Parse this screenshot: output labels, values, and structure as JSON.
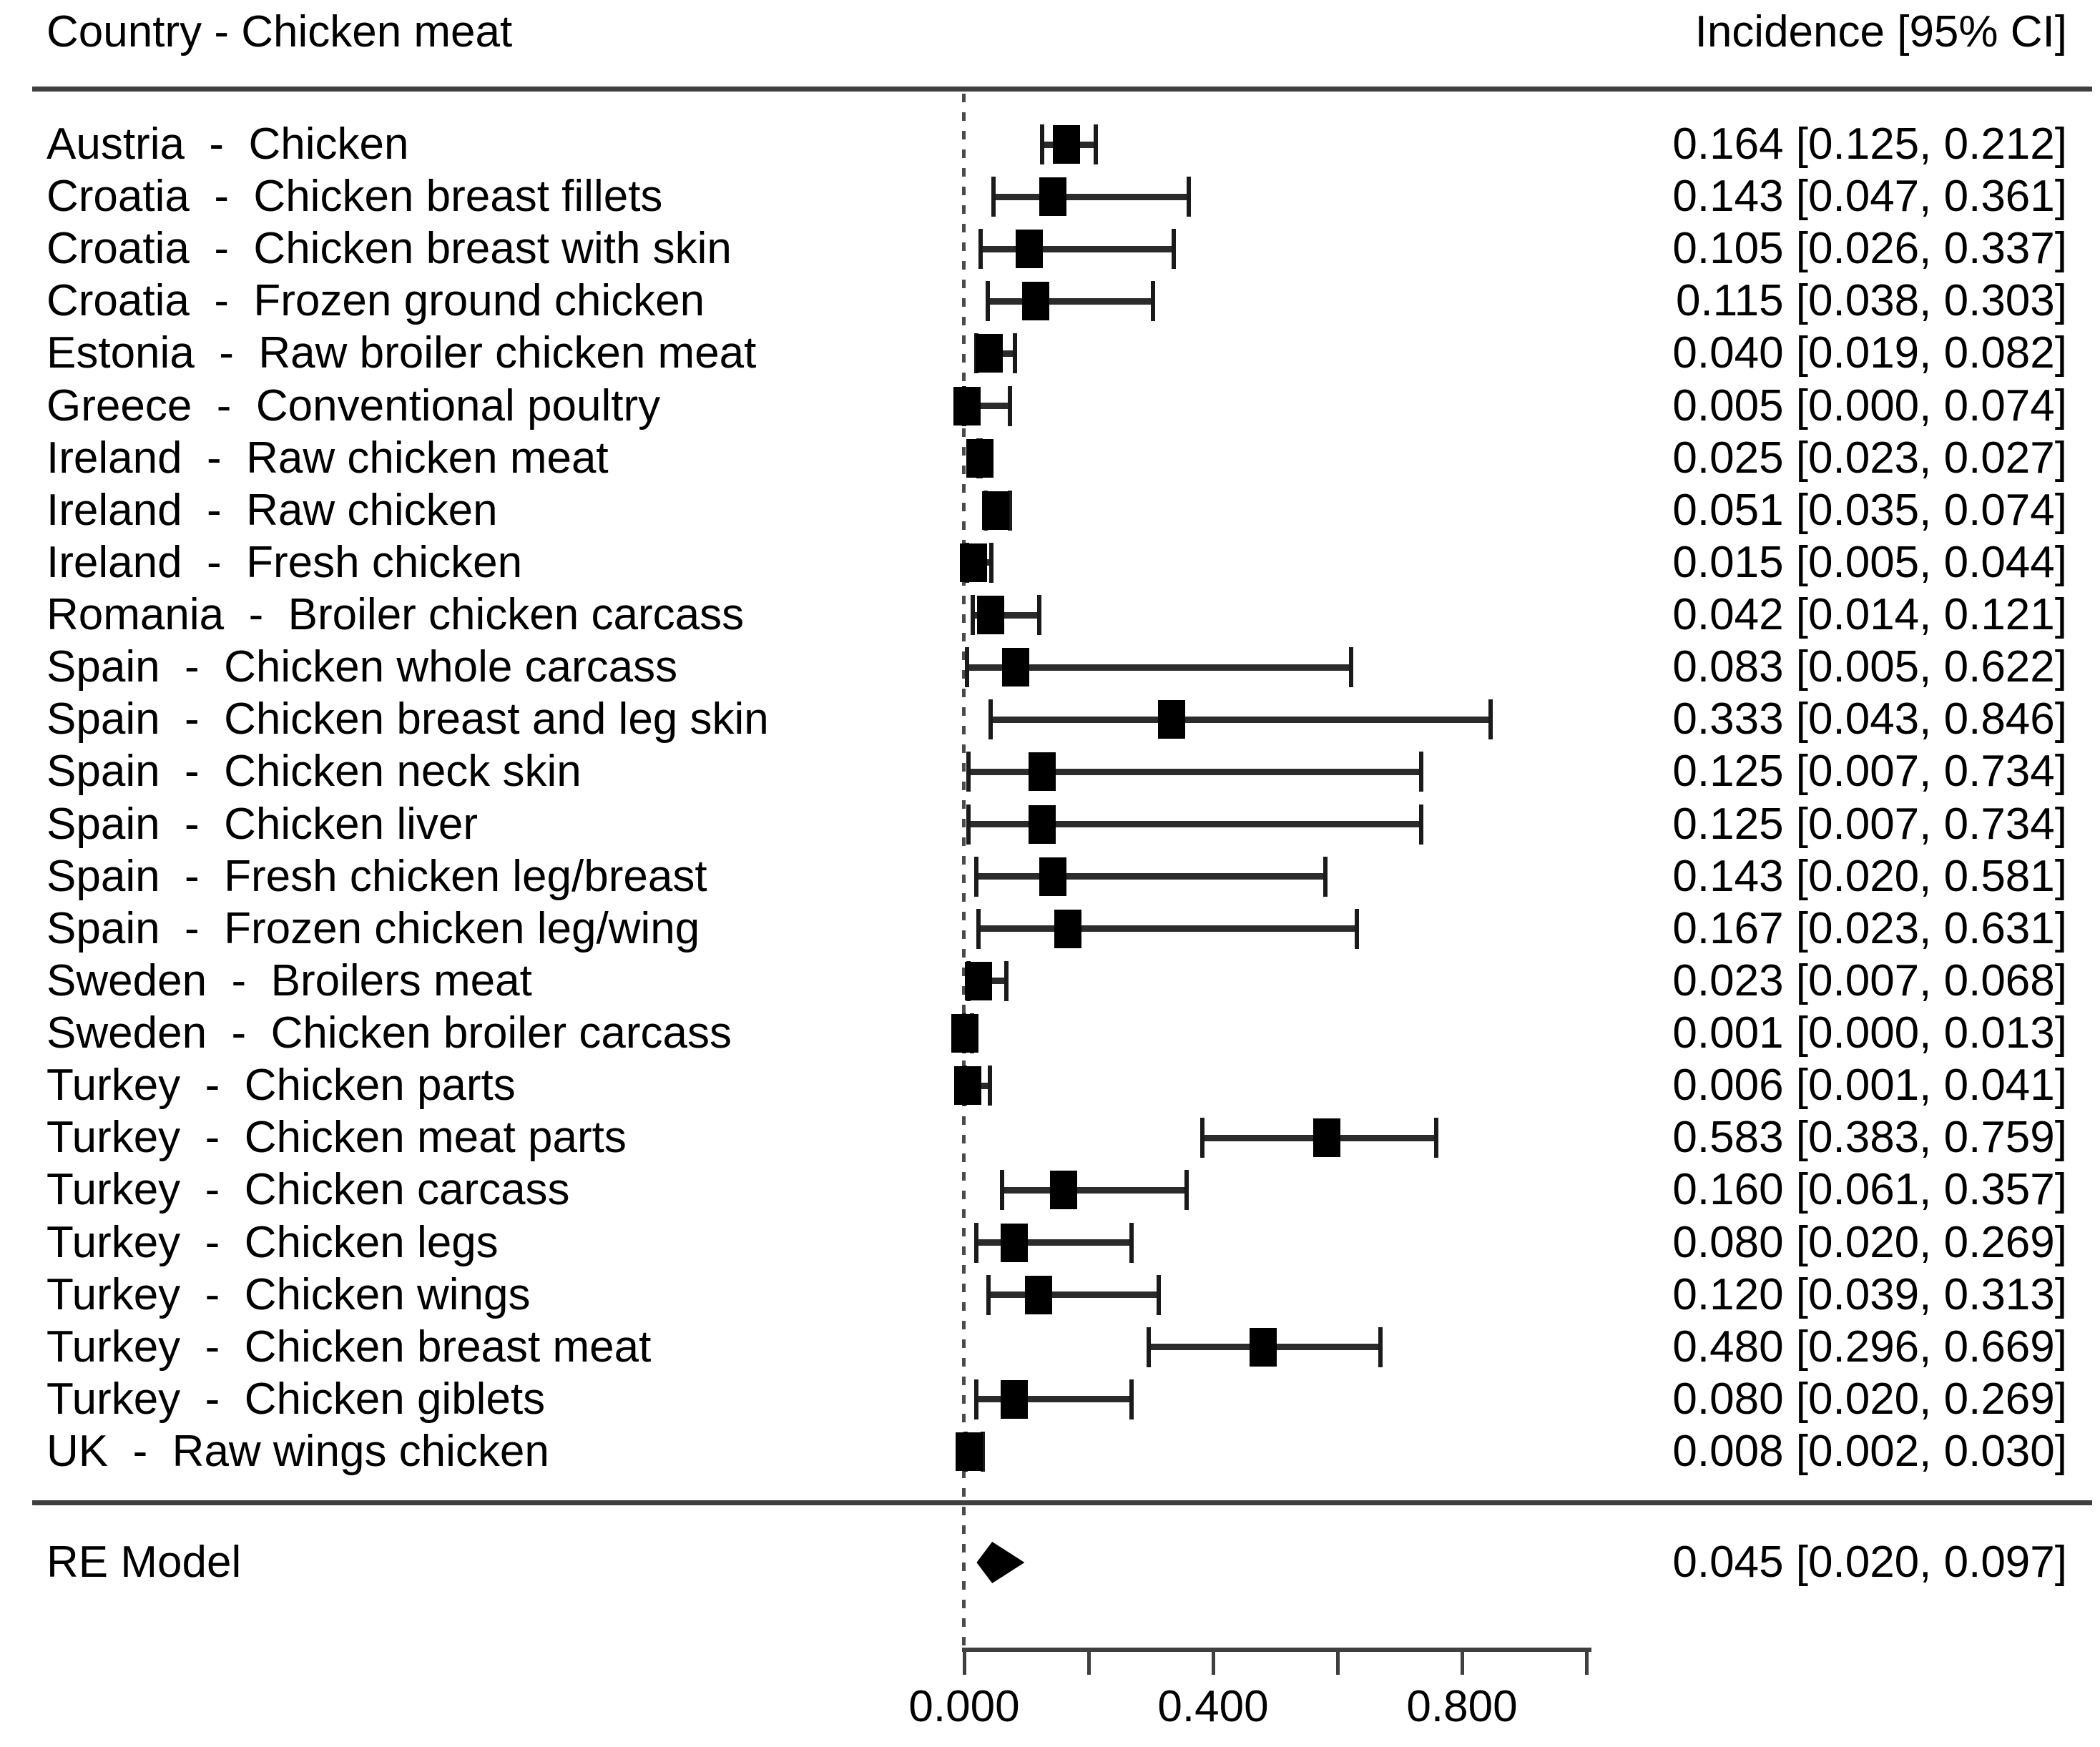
{
  "header": {
    "left": "Country - Chicken meat",
    "right": "Incidence [95% CI]"
  },
  "re_model": {
    "label": "RE Model",
    "value_text": "0.045 [0.020, 0.097]",
    "est": 0.045,
    "lo": 0.02,
    "hi": 0.097
  },
  "colors": {
    "text": "#000000",
    "rule": "#3f3f3f",
    "marker": "#000000",
    "whisker": "#2b2b2b",
    "zero_line": "#4a4a4a"
  },
  "chart_data": {
    "type": "forest",
    "title": "Country - Chicken meat",
    "value_column_header": "Incidence [95% CI]",
    "xlim": [
      0.0,
      1.0
    ],
    "grid": false,
    "zero_reference_line": 0.0,
    "x_ticks": [
      {
        "v": 0.0,
        "label": "0.000"
      },
      {
        "v": 0.2,
        "label": ""
      },
      {
        "v": 0.4,
        "label": "0.400"
      },
      {
        "v": 0.6,
        "label": ""
      },
      {
        "v": 0.8,
        "label": "0.800"
      },
      {
        "v": 1.0,
        "label": ""
      }
    ],
    "rows": [
      {
        "label": "Austria  -  Chicken",
        "est": 0.164,
        "lo": 0.125,
        "hi": 0.212,
        "value_text": "0.164 [0.125, 0.212]"
      },
      {
        "label": "Croatia  -  Chicken breast fillets",
        "est": 0.143,
        "lo": 0.047,
        "hi": 0.361,
        "value_text": "0.143 [0.047, 0.361]"
      },
      {
        "label": "Croatia  -  Chicken breast with skin",
        "est": 0.105,
        "lo": 0.026,
        "hi": 0.337,
        "value_text": "0.105 [0.026, 0.337]"
      },
      {
        "label": "Croatia  -  Frozen ground chicken",
        "est": 0.115,
        "lo": 0.038,
        "hi": 0.303,
        "value_text": "0.115 [0.038, 0.303]"
      },
      {
        "label": "Estonia  -  Raw broiler chicken meat",
        "est": 0.04,
        "lo": 0.019,
        "hi": 0.082,
        "value_text": "0.040 [0.019, 0.082]"
      },
      {
        "label": "Greece  -  Conventional poultry",
        "est": 0.005,
        "lo": 0.0,
        "hi": 0.074,
        "value_text": "0.005 [0.000, 0.074]"
      },
      {
        "label": "Ireland  -  Raw chicken meat",
        "est": 0.025,
        "lo": 0.023,
        "hi": 0.027,
        "value_text": "0.025 [0.023, 0.027]"
      },
      {
        "label": "Ireland  -  Raw chicken",
        "est": 0.051,
        "lo": 0.035,
        "hi": 0.074,
        "value_text": "0.051 [0.035, 0.074]"
      },
      {
        "label": "Ireland  -  Fresh chicken",
        "est": 0.015,
        "lo": 0.005,
        "hi": 0.044,
        "value_text": "0.015 [0.005, 0.044]"
      },
      {
        "label": "Romania  -  Broiler chicken carcass",
        "est": 0.042,
        "lo": 0.014,
        "hi": 0.121,
        "value_text": "0.042 [0.014, 0.121]"
      },
      {
        "label": "Spain  -  Chicken whole carcass",
        "est": 0.083,
        "lo": 0.005,
        "hi": 0.622,
        "value_text": "0.083 [0.005, 0.622]"
      },
      {
        "label": "Spain  -  Chicken breast and leg skin",
        "est": 0.333,
        "lo": 0.043,
        "hi": 0.846,
        "value_text": "0.333 [0.043, 0.846]"
      },
      {
        "label": "Spain  -  Chicken neck skin",
        "est": 0.125,
        "lo": 0.007,
        "hi": 0.734,
        "value_text": "0.125 [0.007, 0.734]"
      },
      {
        "label": "Spain  -  Chicken liver",
        "est": 0.125,
        "lo": 0.007,
        "hi": 0.734,
        "value_text": "0.125 [0.007, 0.734]"
      },
      {
        "label": "Spain  -  Fresh chicken leg/breast",
        "est": 0.143,
        "lo": 0.02,
        "hi": 0.581,
        "value_text": "0.143 [0.020, 0.581]"
      },
      {
        "label": "Spain  -  Frozen chicken leg/wing",
        "est": 0.167,
        "lo": 0.023,
        "hi": 0.631,
        "value_text": "0.167 [0.023, 0.631]"
      },
      {
        "label": "Sweden  -  Broilers meat",
        "est": 0.023,
        "lo": 0.007,
        "hi": 0.068,
        "value_text": "0.023 [0.007, 0.068]"
      },
      {
        "label": "Sweden  -  Chicken broiler carcass",
        "est": 0.001,
        "lo": 0.0,
        "hi": 0.013,
        "value_text": "0.001 [0.000, 0.013]"
      },
      {
        "label": "Turkey  -  Chicken parts",
        "est": 0.006,
        "lo": 0.001,
        "hi": 0.041,
        "value_text": "0.006 [0.001, 0.041]"
      },
      {
        "label": "Turkey  -  Chicken meat parts",
        "est": 0.583,
        "lo": 0.383,
        "hi": 0.759,
        "value_text": "0.583 [0.383, 0.759]"
      },
      {
        "label": "Turkey  -  Chicken carcass",
        "est": 0.16,
        "lo": 0.061,
        "hi": 0.357,
        "value_text": "0.160 [0.061, 0.357]"
      },
      {
        "label": "Turkey  -  Chicken legs",
        "est": 0.08,
        "lo": 0.02,
        "hi": 0.269,
        "value_text": "0.080 [0.020, 0.269]"
      },
      {
        "label": "Turkey  -  Chicken wings",
        "est": 0.12,
        "lo": 0.039,
        "hi": 0.313,
        "value_text": "0.120 [0.039, 0.313]"
      },
      {
        "label": "Turkey  -  Chicken breast meat",
        "est": 0.48,
        "lo": 0.296,
        "hi": 0.669,
        "value_text": "0.480 [0.296, 0.669]"
      },
      {
        "label": "Turkey  -  Chicken giblets",
        "est": 0.08,
        "lo": 0.02,
        "hi": 0.269,
        "value_text": "0.080 [0.020, 0.269]"
      },
      {
        "label": "UK  -  Raw wings chicken",
        "est": 0.008,
        "lo": 0.002,
        "hi": 0.03,
        "value_text": "0.008 [0.002, 0.030]"
      }
    ],
    "summary": {
      "label": "RE Model",
      "est": 0.045,
      "lo": 0.02,
      "hi": 0.097,
      "value_text": "0.045 [0.020, 0.097]"
    },
    "legend": null
  }
}
